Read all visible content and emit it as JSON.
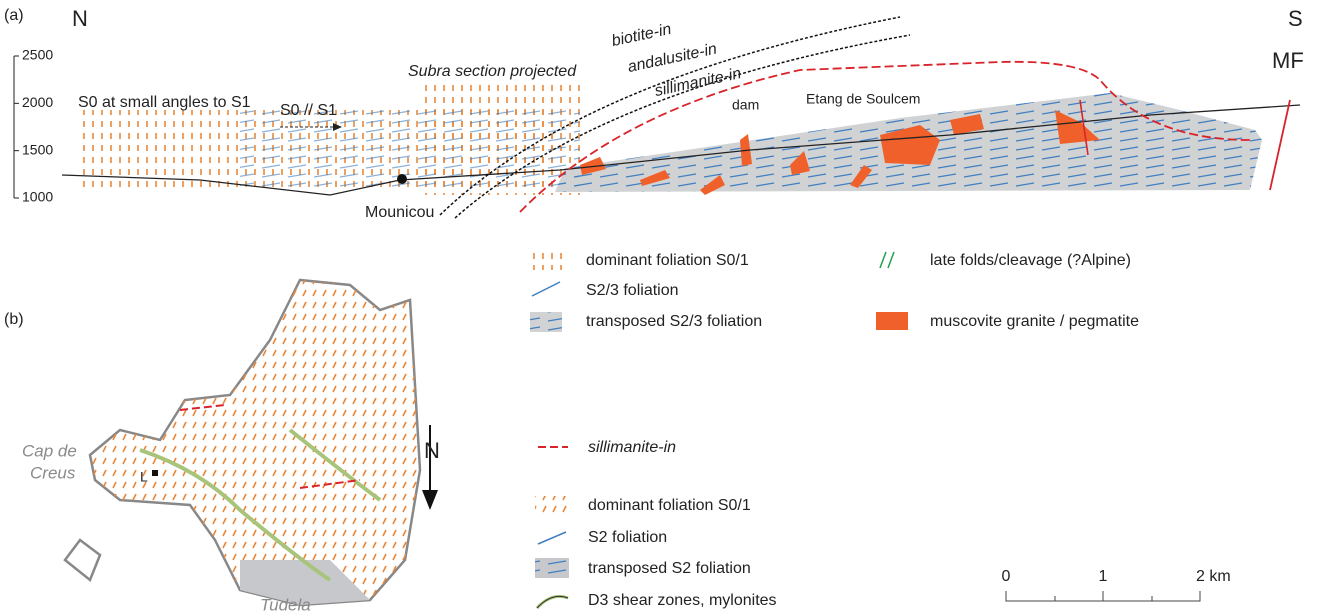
{
  "panel_a": {
    "label": "(a)",
    "north": "N",
    "south": "S",
    "elevation_ticks": [
      2500,
      2000,
      1500,
      1000
    ],
    "annotations": {
      "s0_small_angles": "S0 at small angles to S1",
      "s0_parallel": "S0 // S1",
      "subra": "Subra section projected",
      "biotite": "biotite-in",
      "andalusite": "andalusite-in",
      "sillimanite": "sillimanite-in",
      "dam": "dam",
      "etang": "Etang de Soulcem",
      "mounicou": "Mounicou",
      "mf": "MF"
    },
    "legend": [
      "dominant foliation S0/1",
      "S2/3 foliation",
      "transposed S2/3 foliation",
      "late folds/cleavage (?Alpine)",
      "muscovite granite / pegmatite"
    ]
  },
  "panel_b": {
    "label": "(b)",
    "place_1_line_1": "Cap de",
    "place_1_line_2": "Creus",
    "place_2": "Tudela",
    "north": "N",
    "locality": "L",
    "legend": [
      "sillimanite-in",
      "dominant foliation S0/1",
      "S2 foliation",
      "transposed S2 foliation",
      "D3 shear zones, mylonites"
    ],
    "scale_bar": [
      "0",
      "1",
      "2 km"
    ]
  }
}
